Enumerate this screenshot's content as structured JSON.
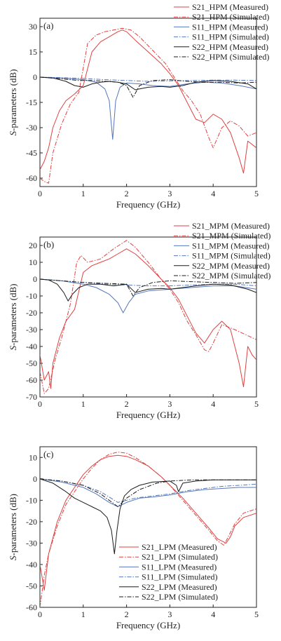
{
  "figure": {
    "xlabel": "Frequency (GHz)",
    "ylabel_italic": "S",
    "ylabel_rest": "-parameters (dB)"
  },
  "colors": {
    "red": "#e04040",
    "blue": "#5577bb",
    "black": "#1a1a1a"
  },
  "chart_data": [
    {
      "type": "line",
      "tag": "(a)",
      "xlim": [
        0,
        5
      ],
      "ylim": [
        -65,
        35
      ],
      "xticks": [
        0,
        1,
        2,
        3,
        4,
        5
      ],
      "yticks": [
        30,
        15,
        0,
        -15,
        -30,
        -45,
        -60
      ],
      "xlabel": "Frequency (GHz)",
      "ylabel": "S-parameters (dB)",
      "grid": false,
      "legend": "top-right",
      "series": [
        {
          "name": "S21_HPM (Measured)",
          "color": "red",
          "dash": "solid",
          "x": [
            0,
            0.1,
            0.2,
            0.3,
            0.45,
            0.6,
            0.8,
            1.0,
            1.2,
            1.4,
            1.6,
            1.8,
            1.9,
            2.0,
            2.2,
            2.5,
            2.8,
            3.0,
            3.2,
            3.4,
            3.6,
            3.8,
            4.0,
            4.2,
            4.4,
            4.6,
            4.7,
            4.8,
            4.9,
            5.0
          ],
          "y": [
            -55,
            -50,
            -42,
            -30,
            -20,
            -14,
            -10,
            -5,
            15,
            21,
            24,
            27,
            28,
            27,
            22,
            15,
            8,
            2,
            -5,
            -15,
            -25,
            -27,
            -22,
            -25,
            -33,
            -48,
            -57,
            -38,
            -40,
            -42
          ]
        },
        {
          "name": "S21_HPM (Simulated)",
          "color": "red",
          "dash": "dashdot",
          "x": [
            0,
            0.1,
            0.2,
            0.3,
            0.5,
            0.7,
            0.9,
            1.1,
            1.3,
            1.5,
            1.7,
            1.9,
            2.1,
            2.3,
            2.6,
            2.9,
            3.1,
            3.3,
            3.5,
            3.7,
            3.9,
            4.0,
            4.2,
            4.4,
            4.6,
            4.8,
            5.0
          ],
          "y": [
            -60,
            -62,
            -63,
            -45,
            -28,
            -16,
            -9,
            20,
            25,
            27,
            28,
            29,
            28,
            24,
            16,
            8,
            0,
            -8,
            -14,
            -22,
            -36,
            -42,
            -30,
            -26,
            -29,
            -35,
            -33
          ]
        },
        {
          "name": "S11_HPM (Measured)",
          "color": "blue",
          "dash": "solid",
          "x": [
            0,
            0.5,
            1.0,
            1.3,
            1.5,
            1.6,
            1.68,
            1.75,
            1.85,
            2.0,
            2.3,
            2.6,
            3.0,
            3.4,
            3.8,
            4.2,
            4.6,
            5.0
          ],
          "y": [
            0,
            -0.5,
            -1.5,
            -3,
            -7,
            -14,
            -37,
            -14,
            -6,
            -3.5,
            -4,
            -5,
            -5.5,
            -4,
            -3,
            -3.5,
            -5,
            -7
          ]
        },
        {
          "name": "S11_HPM (Simulated)",
          "color": "blue",
          "dash": "dashdot",
          "x": [
            0,
            0.5,
            1.0,
            1.5,
            2.0,
            2.5,
            3.0,
            3.5,
            4.0,
            4.5,
            5.0
          ],
          "y": [
            0,
            -0.3,
            -0.8,
            -1.5,
            -2,
            -2.5,
            -2.2,
            -2,
            -1.8,
            -1.8,
            -2
          ]
        },
        {
          "name": "S22_HPM (Measured)",
          "color": "black",
          "dash": "solid",
          "x": [
            0,
            0.3,
            0.6,
            0.8,
            1.0,
            1.2,
            1.4,
            1.6,
            1.8,
            2.0,
            2.2,
            2.5,
            2.8,
            3.0,
            3.3,
            3.6,
            4.0,
            4.4,
            4.8,
            5.0
          ],
          "y": [
            0,
            -0.5,
            -2.5,
            -5,
            -6,
            -4,
            -3,
            -2.5,
            -3,
            -4,
            -7.5,
            -6,
            -5.5,
            -6,
            -5,
            -3,
            -2,
            -2.5,
            -4,
            -7
          ]
        },
        {
          "name": "S22_HPM (Simulated)",
          "color": "black",
          "dash": "dashdot",
          "x": [
            0,
            0.5,
            0.9,
            1.2,
            1.5,
            1.8,
            2.0,
            2.15,
            2.3,
            2.6,
            3.0,
            3.4,
            3.8,
            4.2,
            4.6,
            5.0
          ],
          "y": [
            0,
            -1,
            -2,
            -2,
            -2.5,
            -3,
            -5,
            -12,
            -5,
            -2,
            -1.5,
            -2.5,
            -3,
            -3,
            -3.5,
            -3
          ]
        }
      ]
    },
    {
      "type": "line",
      "tag": "(b)",
      "xlim": [
        0,
        5
      ],
      "ylim": [
        -70,
        25
      ],
      "xticks": [
        0,
        1,
        2,
        3,
        4,
        5
      ],
      "yticks": [
        20,
        10,
        0,
        -10,
        -20,
        -30,
        -40,
        -50,
        -60,
        -70
      ],
      "xlabel": "Frequency (GHz)",
      "ylabel": "S-parameters (dB)",
      "grid": false,
      "legend": "top-right",
      "series": [
        {
          "name": "S21_MPM (Measured)",
          "color": "red",
          "dash": "solid",
          "x": [
            0,
            0.1,
            0.2,
            0.25,
            0.3,
            0.45,
            0.6,
            0.8,
            1.0,
            1.2,
            1.4,
            1.6,
            1.8,
            2.0,
            2.2,
            2.5,
            2.8,
            3.0,
            3.2,
            3.4,
            3.6,
            3.8,
            4.0,
            4.2,
            4.4,
            4.6,
            4.7,
            4.8,
            4.9,
            5.0
          ],
          "y": [
            -45,
            -60,
            -55,
            -65,
            -50,
            -35,
            -25,
            -18,
            4,
            8,
            10,
            12,
            15,
            18,
            15,
            8,
            0,
            -5,
            -12,
            -22,
            -32,
            -38,
            -30,
            -25,
            -30,
            -50,
            -64,
            -40,
            -45,
            -48
          ]
        },
        {
          "name": "S21_MPM (Simulated)",
          "color": "red",
          "dash": "dashdot",
          "x": [
            0,
            0.1,
            0.2,
            0.35,
            0.5,
            0.7,
            0.85,
            0.95,
            1.1,
            1.4,
            1.7,
            2.0,
            2.2,
            2.5,
            2.8,
            3.0,
            3.2,
            3.4,
            3.6,
            3.8,
            3.9,
            4.0,
            4.2,
            4.5,
            5.0
          ],
          "y": [
            -55,
            -68,
            -65,
            -48,
            -35,
            -15,
            10,
            14,
            10,
            12,
            18,
            23,
            19,
            10,
            0,
            -6,
            -14,
            -25,
            -33,
            -42,
            -43,
            -38,
            -27,
            -30,
            -36
          ]
        },
        {
          "name": "S11_MPM (Measured)",
          "color": "blue",
          "dash": "solid",
          "x": [
            0,
            0.5,
            1.0,
            1.3,
            1.6,
            1.8,
            1.92,
            2.05,
            2.2,
            2.5,
            3.0,
            3.5,
            4.0,
            4.5,
            5.0
          ],
          "y": [
            0,
            -1,
            -3,
            -5,
            -9,
            -14,
            -20,
            -14,
            -9,
            -7,
            -6,
            -5,
            -4,
            -4,
            -6
          ]
        },
        {
          "name": "S11_MPM (Simulated)",
          "color": "blue",
          "dash": "dashdot",
          "x": [
            0,
            0.5,
            1.0,
            1.5,
            2.0,
            2.5,
            3.0,
            3.5,
            4.0,
            4.5,
            5.0
          ],
          "y": [
            0,
            -1,
            -2,
            -3,
            -3.5,
            -4,
            -4,
            -3.5,
            -3,
            -3,
            -4
          ]
        },
        {
          "name": "S22_MPM (Measured)",
          "color": "black",
          "dash": "solid",
          "x": [
            0,
            0.2,
            0.4,
            0.55,
            0.65,
            0.75,
            0.9,
            1.1,
            1.4,
            1.7,
            2.0,
            2.2,
            2.5,
            2.8,
            3.0,
            3.3,
            3.6,
            4.0,
            4.4,
            4.8,
            5.0
          ],
          "y": [
            0,
            -0.5,
            -3,
            -8,
            -13,
            -9,
            -5,
            -3,
            -3,
            -4,
            -3,
            -8,
            -6,
            -5.5,
            -6,
            -5,
            -4,
            -3,
            -3.5,
            -6,
            -8
          ]
        },
        {
          "name": "S22_MPM (Simulated)",
          "color": "black",
          "dash": "dashdot",
          "x": [
            0,
            0.5,
            1.0,
            1.5,
            2.0,
            2.15,
            2.3,
            2.6,
            3.0,
            3.5,
            4.0,
            4.5,
            5.0
          ],
          "y": [
            0,
            -1,
            -2,
            -2.5,
            -3,
            -10,
            -5,
            -2,
            -1,
            -1.5,
            -2,
            -2.5,
            -2
          ]
        }
      ]
    },
    {
      "type": "line",
      "tag": "(c)",
      "xlim": [
        0,
        5
      ],
      "ylim": [
        -60,
        15
      ],
      "xticks": [
        0,
        1,
        2,
        3,
        4,
        5
      ],
      "yticks": [
        10,
        0,
        -10,
        -20,
        -30,
        -40,
        -50,
        -60
      ],
      "xlabel": "Frequency (GHz)",
      "ylabel": "S-parameters (dB)",
      "grid": false,
      "legend": "bottom-right",
      "series": [
        {
          "name": "S21_LPM (Measured)",
          "color": "red",
          "dash": "solid",
          "x": [
            0,
            0.1,
            0.2,
            0.4,
            0.6,
            0.8,
            1.0,
            1.2,
            1.4,
            1.6,
            1.8,
            2.0,
            2.2,
            2.5,
            2.8,
            3.0,
            3.3,
            3.6,
            3.9,
            4.1,
            4.3,
            4.4,
            4.5,
            4.7,
            5.0
          ],
          "y": [
            -40,
            -52,
            -35,
            -20,
            -10,
            -4,
            2,
            6,
            9,
            10.5,
            11,
            10.5,
            9,
            6,
            1,
            -3,
            -9,
            -16,
            -23,
            -28,
            -30,
            -27,
            -22,
            -18,
            -16
          ]
        },
        {
          "name": "S21_LPM (Simulated)",
          "color": "red",
          "dash": "dashdot",
          "x": [
            0,
            0.1,
            0.2,
            0.4,
            0.6,
            0.8,
            1.0,
            1.2,
            1.4,
            1.6,
            1.8,
            2.0,
            2.2,
            2.5,
            2.8,
            3.0,
            3.3,
            3.6,
            3.9,
            4.1,
            4.25,
            4.35,
            4.5,
            4.7,
            5.0
          ],
          "y": [
            -60,
            -45,
            -35,
            -22,
            -12,
            -6,
            0,
            5,
            9,
            11.5,
            12.5,
            12,
            10,
            6,
            1,
            -3,
            -10,
            -17,
            -24,
            -29,
            -31,
            -27,
            -21,
            -16,
            -14
          ]
        },
        {
          "name": "S11_LPM (Measured)",
          "color": "blue",
          "dash": "solid",
          "x": [
            0,
            0.5,
            1.0,
            1.3,
            1.6,
            1.8,
            2.0,
            2.3,
            2.6,
            3.0,
            3.4,
            3.8,
            4.2,
            4.6,
            5.0
          ],
          "y": [
            0,
            -1.5,
            -4,
            -7,
            -11,
            -13,
            -11,
            -9,
            -8.5,
            -7.5,
            -6,
            -5,
            -4.5,
            -4,
            -4
          ]
        },
        {
          "name": "S11_LPM (Simulated)",
          "color": "blue",
          "dash": "dashdot",
          "x": [
            0,
            0.5,
            1.0,
            1.4,
            1.8,
            2.2,
            2.6,
            3.0,
            3.4,
            3.8,
            4.2,
            4.6,
            5.0
          ],
          "y": [
            0,
            -1,
            -3,
            -6,
            -11,
            -9,
            -8,
            -7,
            -5.5,
            -4.5,
            -3.5,
            -3,
            -2.5
          ]
        },
        {
          "name": "S22_LPM (Measured)",
          "color": "black",
          "dash": "solid",
          "x": [
            0,
            0.3,
            0.6,
            0.8,
            1.0,
            1.2,
            1.4,
            1.55,
            1.65,
            1.72,
            1.78,
            1.85,
            1.95,
            2.1,
            2.3,
            2.6,
            3.0,
            3.15,
            3.2,
            3.3,
            3.6,
            4.0,
            4.5,
            5.0
          ],
          "y": [
            0,
            -2,
            -6,
            -9,
            -11,
            -13,
            -15,
            -18,
            -24,
            -35,
            -24,
            -14,
            -8,
            -5,
            -3,
            -1.5,
            -1,
            -3,
            -6,
            -2,
            -1,
            -0.5,
            -0.5,
            -0.5
          ]
        },
        {
          "name": "S22_LPM (Simulated)",
          "color": "black",
          "dash": "dashdot",
          "x": [
            0,
            0.5,
            1.0,
            1.4,
            1.8,
            2.0,
            2.3,
            2.7,
            3.0,
            3.5,
            4.0,
            4.5,
            5.0
          ],
          "y": [
            0,
            -1,
            -3,
            -7,
            -13,
            -9,
            -5,
            -2,
            -1,
            -0.5,
            -0.5,
            -0.5,
            -0.5
          ]
        }
      ]
    }
  ]
}
